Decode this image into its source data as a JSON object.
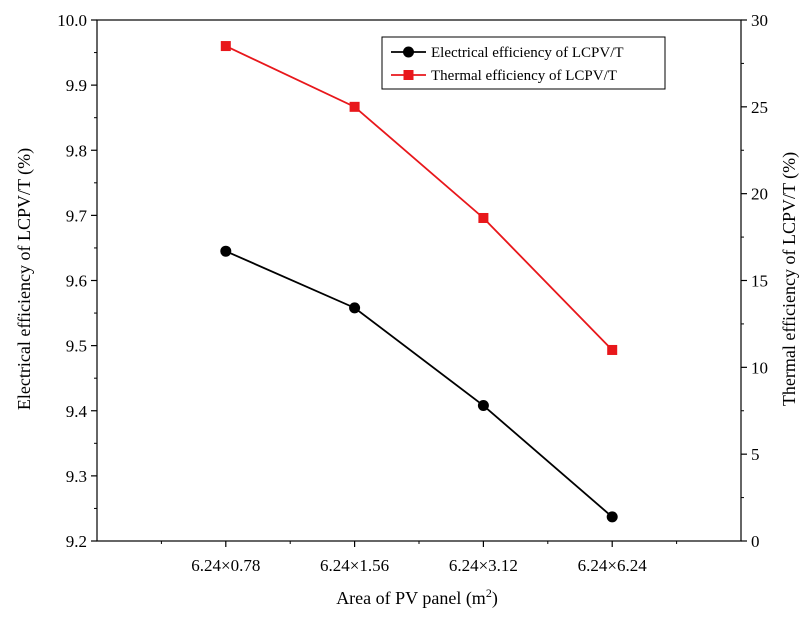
{
  "chart_data": {
    "type": "line",
    "categories": [
      "6.24×0.78",
      "6.24×1.56",
      "6.24×3.12",
      "6.24×6.24"
    ],
    "xlabel": "Area of PV panel (m",
    "xlabel_sup": "2",
    "xlabel_end": ")",
    "ylabel": "Electrical efficiency of LCPV/T (%)",
    "ylabel_right": "Thermal efficiency of LCPV/T (%)",
    "ylim": [
      9.2,
      10.0
    ],
    "ylim_right": [
      0,
      30
    ],
    "yticks": [
      "9.2",
      "9.3",
      "9.4",
      "9.5",
      "9.6",
      "9.7",
      "9.8",
      "9.9",
      "10.0"
    ],
    "yticks_right": [
      "0",
      "5",
      "10",
      "15",
      "20",
      "25",
      "30"
    ],
    "legend_position": "top-right",
    "grid": false,
    "series": [
      {
        "name": "Electrical efficiency of LCPV/T",
        "axis": "left",
        "color": "#000000",
        "marker": "circle",
        "values": [
          9.645,
          9.558,
          9.408,
          9.237
        ]
      },
      {
        "name": "Thermal efficiency of LCPV/T",
        "axis": "right",
        "color": "#e8171b",
        "marker": "square",
        "values": [
          28.5,
          25.0,
          18.6,
          11.0
        ]
      }
    ]
  }
}
